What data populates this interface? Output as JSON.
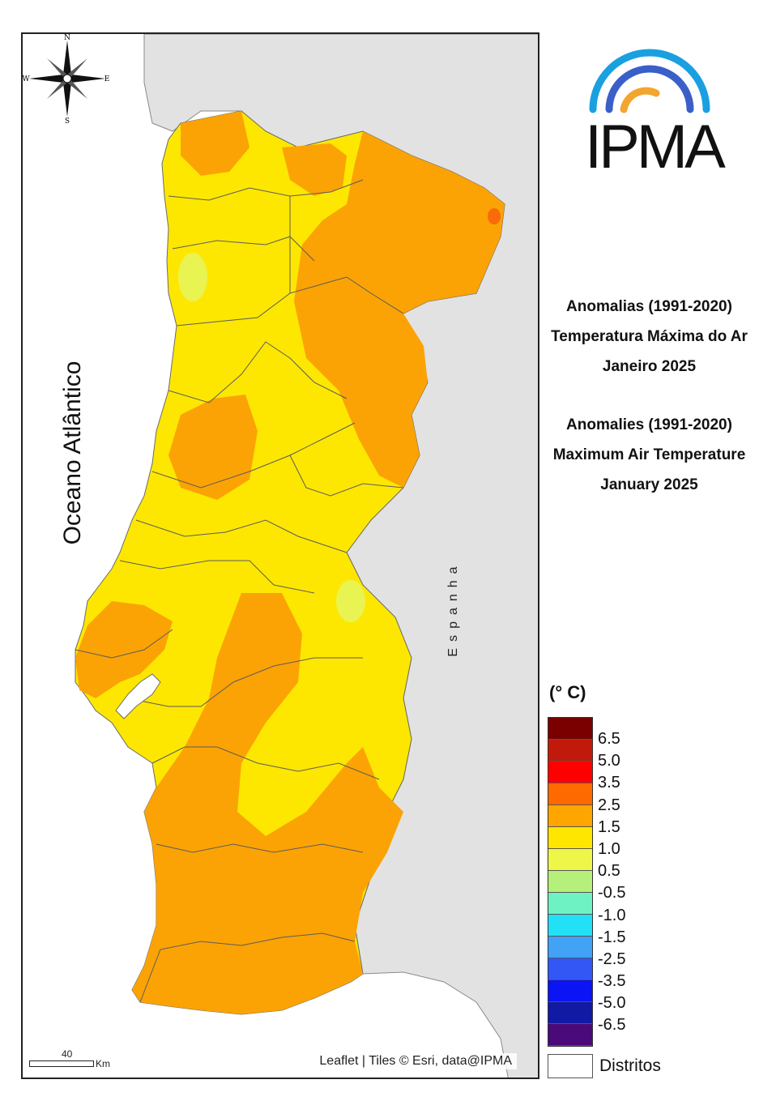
{
  "map": {
    "ocean_label": "Oceano Atlântico",
    "country_label": "Espanha",
    "attribution": "Leaflet | Tiles © Esri, data@IPMA",
    "scale_value": "40",
    "scale_unit": "Km",
    "compass": {
      "n": "N",
      "s": "S",
      "e": "E",
      "w": "W"
    },
    "colors": {
      "land_bg": "#e2e2e2",
      "sea": "#ffffff",
      "anomaly_1_0_1_5": "#fde700",
      "anomaly_1_5_2_5": "#fba305",
      "anomaly_0_5_1_0": "#e9f352",
      "anomaly_2_5_3_5": "#f96a0a"
    }
  },
  "logo": {
    "text": "IPMA",
    "arc_colors": [
      "#1aa0e0",
      "#3a5fc8",
      "#f3a52e"
    ]
  },
  "titles": {
    "pt_line1": "Anomalias (1991-2020)",
    "pt_line2": "Temperatura Máxima do Ar",
    "pt_line3": "Janeiro 2025",
    "en_line1": "Anomalies (1991-2020)",
    "en_line2": "Maximum Air Temperature",
    "en_line3": "January 2025"
  },
  "legend": {
    "unit": "(° C)",
    "classes": [
      {
        "color": "#7a0000"
      },
      {
        "color": "#c21a0a"
      },
      {
        "color": "#ff0000"
      },
      {
        "color": "#ff6a00"
      },
      {
        "color": "#ffa500"
      },
      {
        "color": "#ffe600"
      },
      {
        "color": "#eef64a"
      },
      {
        "color": "#b5f07a"
      },
      {
        "color": "#6ef2c3"
      },
      {
        "color": "#22e0f5"
      },
      {
        "color": "#42a2f5"
      },
      {
        "color": "#3257f5"
      },
      {
        "color": "#0a14f5"
      },
      {
        "color": "#101aa5"
      },
      {
        "color": "#4a0a7a"
      }
    ],
    "labels": [
      "6.5",
      "5.0",
      "3.5",
      "2.5",
      "1.5",
      "1.0",
      "0.5",
      "-0.5",
      "-1.0",
      "-1.5",
      "-2.5",
      "-3.5",
      "-5.0",
      "-6.5"
    ],
    "distritos_label": "Distritos"
  }
}
